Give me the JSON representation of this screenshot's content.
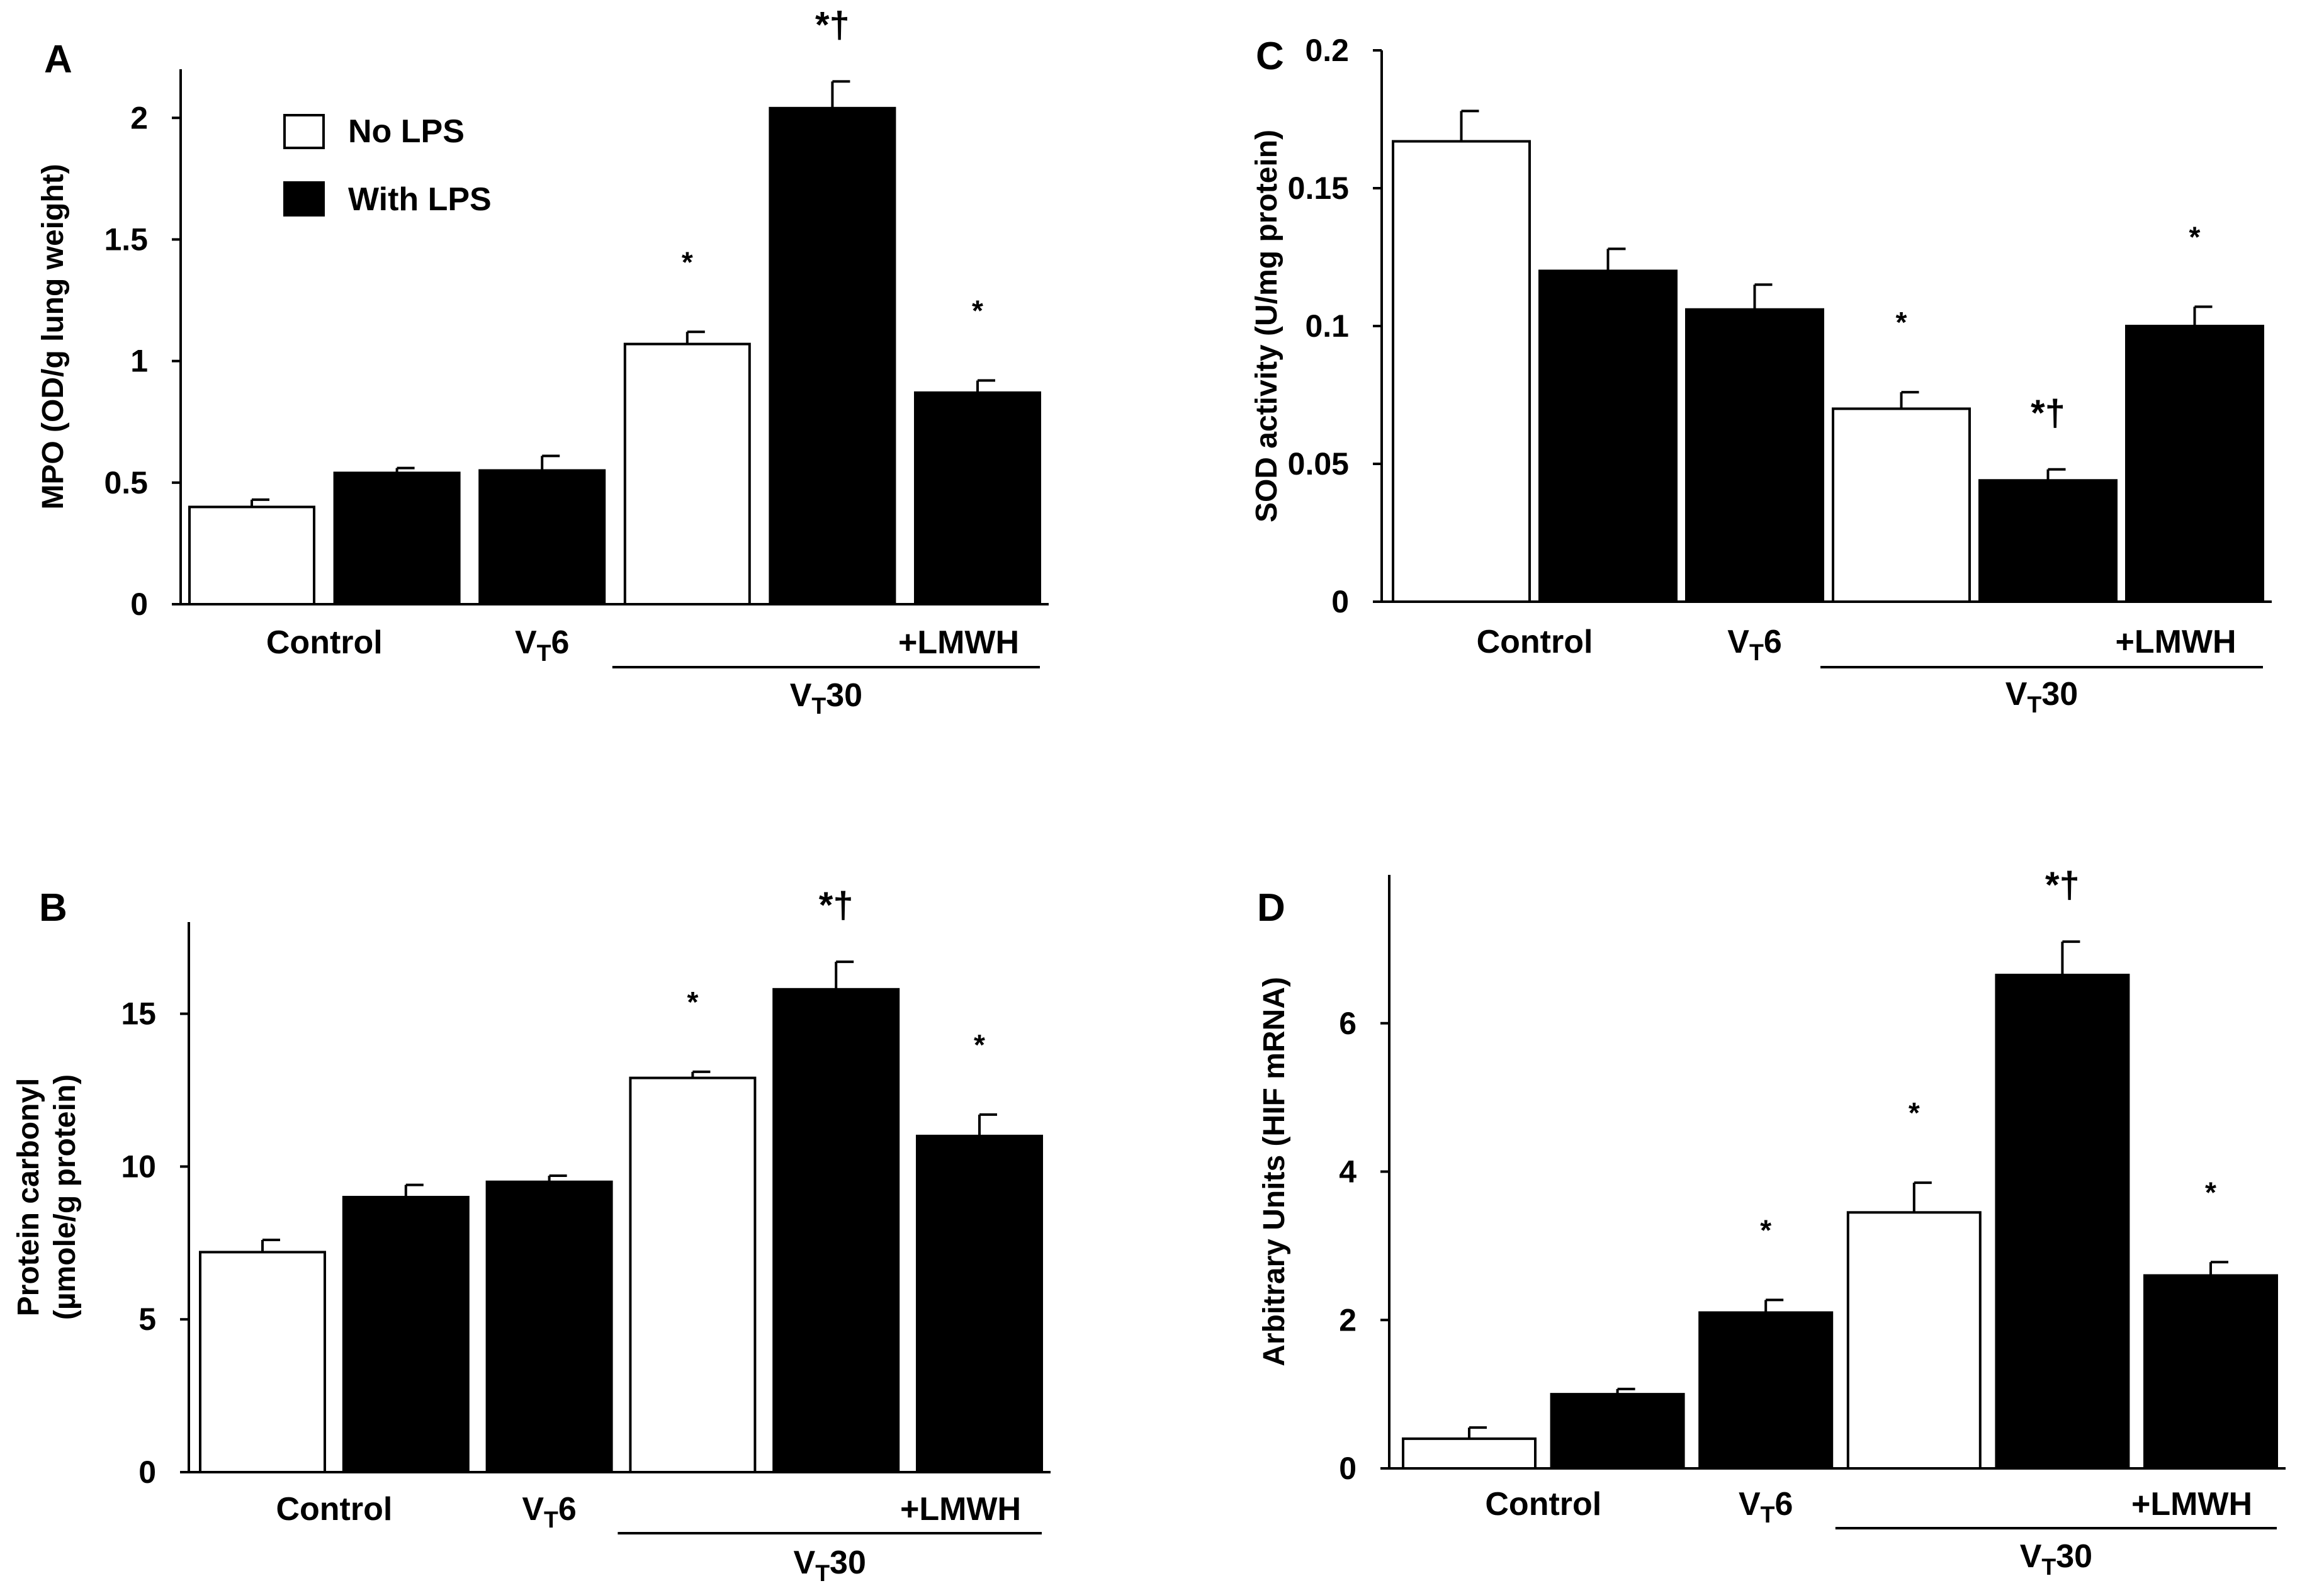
{
  "legend": {
    "no_lps": "No LPS",
    "with_lps": "With LPS"
  },
  "group_label": "VT30",
  "colors": {
    "no_lps": "#ffffff",
    "with_lps": "#000000"
  },
  "chart_data": [
    {
      "panel": "A",
      "type": "bar",
      "ylabel": "MPO (OD/g lung weight)",
      "ylabel_lines": [
        "MPO (OD/g lung weight)"
      ],
      "ylim": [
        0,
        2.2
      ],
      "yticks": [
        0,
        0.5,
        1,
        1.5,
        2
      ],
      "ytick_labels": [
        "0",
        "0.5",
        "1",
        "1.5",
        "2"
      ],
      "x_labels": [
        "Control",
        "VT6",
        "+LMWH"
      ],
      "bars": [
        {
          "value": 0.4,
          "error": 0.03,
          "fill": "white",
          "sig": ""
        },
        {
          "value": 0.54,
          "error": 0.02,
          "fill": "black",
          "sig": ""
        },
        {
          "value": 0.55,
          "error": 0.06,
          "fill": "black",
          "sig": ""
        },
        {
          "value": 1.07,
          "error": 0.05,
          "fill": "white",
          "sig": "*"
        },
        {
          "value": 2.04,
          "error": 0.11,
          "fill": "black",
          "sig": "*†"
        },
        {
          "value": 0.87,
          "error": 0.05,
          "fill": "black",
          "sig": "*"
        }
      ],
      "legend": true
    },
    {
      "panel": "B",
      "type": "bar",
      "ylabel": "Protein carbonyl (µmole/g protein)",
      "ylabel_lines": [
        "Protein carbonyl",
        "(µmole/g protein)"
      ],
      "ylim": [
        0,
        18
      ],
      "yticks": [
        0,
        5,
        10,
        15
      ],
      "ytick_labels": [
        "0",
        "5",
        "10",
        "15"
      ],
      "x_labels": [
        "Control",
        "VT6",
        "+LMWH"
      ],
      "bars": [
        {
          "value": 7.2,
          "error": 0.4,
          "fill": "white",
          "sig": ""
        },
        {
          "value": 9.0,
          "error": 0.4,
          "fill": "black",
          "sig": ""
        },
        {
          "value": 9.5,
          "error": 0.2,
          "fill": "black",
          "sig": ""
        },
        {
          "value": 12.9,
          "error": 0.2,
          "fill": "white",
          "sig": "*"
        },
        {
          "value": 15.8,
          "error": 0.9,
          "fill": "black",
          "sig": "*†"
        },
        {
          "value": 11.0,
          "error": 0.7,
          "fill": "black",
          "sig": "*"
        }
      ],
      "legend": false
    },
    {
      "panel": "C",
      "type": "bar",
      "ylabel": "SOD activity (U/mg protein)",
      "ylabel_lines": [
        "SOD activity (U/mg protein)"
      ],
      "ylim": [
        0,
        0.2
      ],
      "yticks": [
        0,
        0.05,
        0.1,
        0.15,
        0.2
      ],
      "ytick_labels": [
        "0",
        "0.05",
        "0.1",
        "0.15",
        "0.2"
      ],
      "x_labels": [
        "Control",
        "VT6",
        "+LMWH"
      ],
      "bars": [
        {
          "value": 0.167,
          "error": 0.011,
          "fill": "white",
          "sig": ""
        },
        {
          "value": 0.12,
          "error": 0.008,
          "fill": "black",
          "sig": ""
        },
        {
          "value": 0.106,
          "error": 0.009,
          "fill": "black",
          "sig": ""
        },
        {
          "value": 0.07,
          "error": 0.006,
          "fill": "white",
          "sig": "*"
        },
        {
          "value": 0.044,
          "error": 0.004,
          "fill": "black",
          "sig": "*†"
        },
        {
          "value": 0.1,
          "error": 0.007,
          "fill": "black",
          "sig": "*"
        }
      ],
      "legend": false
    },
    {
      "panel": "D",
      "type": "bar",
      "ylabel": "Arbitrary Units (HIF mRNA)",
      "ylabel_lines": [
        "Arbitrary Units (HIF mRNA)"
      ],
      "ylim": [
        0,
        8
      ],
      "yticks": [
        0,
        2,
        4,
        6
      ],
      "ytick_labels": [
        "0",
        "2",
        "4",
        "6"
      ],
      "x_labels": [
        "Control",
        "VT6",
        "+LMWH"
      ],
      "bars": [
        {
          "value": 0.4,
          "error": 0.15,
          "fill": "white",
          "sig": ""
        },
        {
          "value": 1.0,
          "error": 0.07,
          "fill": "black",
          "sig": ""
        },
        {
          "value": 2.1,
          "error": 0.17,
          "fill": "black",
          "sig": "*"
        },
        {
          "value": 3.45,
          "error": 0.4,
          "fill": "white",
          "sig": "*"
        },
        {
          "value": 6.65,
          "error": 0.45,
          "fill": "black",
          "sig": "*†"
        },
        {
          "value": 2.6,
          "error": 0.18,
          "fill": "black",
          "sig": "*"
        }
      ],
      "legend": false
    }
  ]
}
